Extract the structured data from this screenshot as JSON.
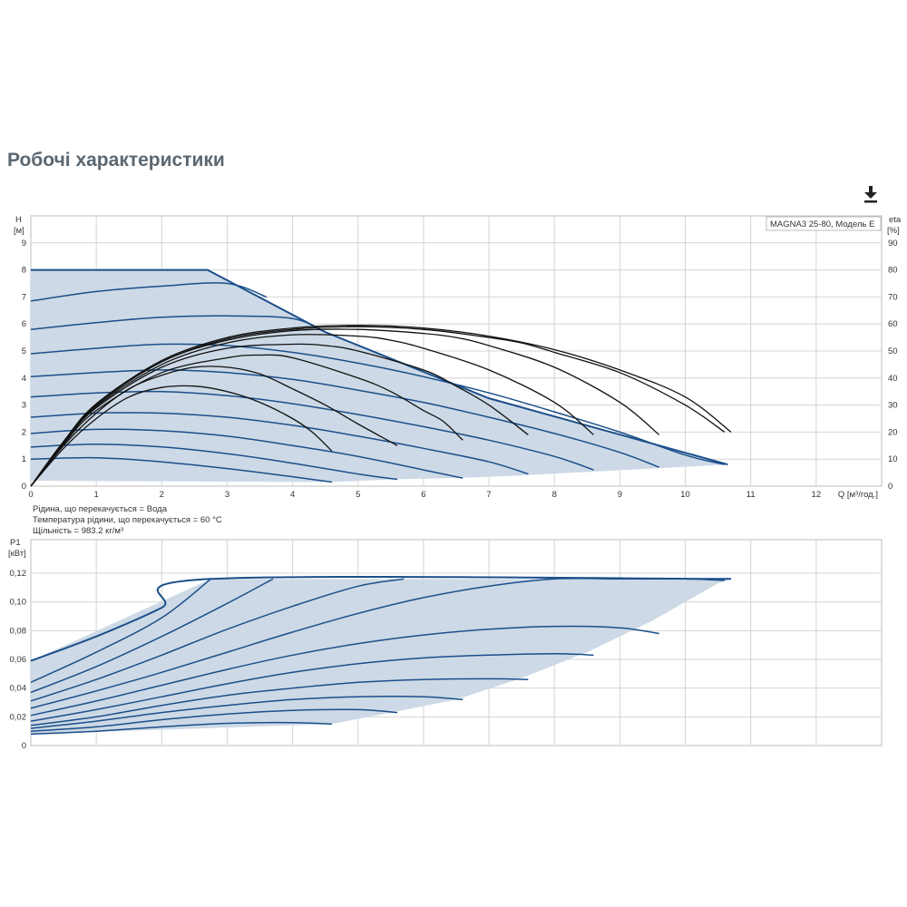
{
  "page": {
    "title": "Робочі характеристики"
  },
  "toolbar": {
    "download_icon": "download-icon"
  },
  "colors": {
    "region_fill": "#cdd9e6",
    "curve_blue": "#1b4f8a",
    "efficiency_black": "#111111",
    "grid": "#d4d4d4"
  },
  "info": {
    "liquid": "Рідина, що перекачується = Вода",
    "temperature": "Температура рідини, що перекачується = 60 °C",
    "density": "Щільність = 983.2 кг/м³"
  },
  "chart_data": [
    {
      "id": "head",
      "type": "line",
      "legend": "MAGNA3 25-80, Модель E",
      "xlabel": "Q [м³/год.]",
      "ylabel_line1": "H",
      "ylabel_line2": "[м]",
      "y2label_line1": "eta",
      "y2label_line2": "[%]",
      "xlim": [
        0,
        13
      ],
      "ylim": [
        0,
        10
      ],
      "y2lim": [
        0,
        100
      ],
      "xticks": [
        0,
        1,
        2,
        3,
        4,
        5,
        6,
        7,
        8,
        9,
        10,
        11,
        12
      ],
      "yticks": [
        0,
        1,
        2,
        3,
        4,
        5,
        6,
        7,
        8,
        9
      ],
      "y2ticks": [
        0,
        10,
        20,
        30,
        40,
        50,
        60,
        70,
        80,
        90
      ],
      "grid": true,
      "envelope": {
        "x": [
          0,
          2.7,
          4.5,
          7.0,
          10.65,
          10.65,
          7.5,
          6.5,
          5.5,
          4.6,
          0
        ],
        "y": [
          8.0,
          8.0,
          5.7,
          3.25,
          0.8,
          0.8,
          0.4,
          0.3,
          0.25,
          0.15,
          0.2
        ]
      },
      "series": [
        {
          "x": [
            0,
            1,
            2,
            3,
            4,
            4.6
          ],
          "y": [
            1.0,
            1.05,
            0.9,
            0.65,
            0.35,
            0.15
          ]
        },
        {
          "x": [
            0,
            1,
            2,
            3,
            4,
            5,
            5.6
          ],
          "y": [
            1.45,
            1.55,
            1.45,
            1.2,
            0.85,
            0.45,
            0.25
          ]
        },
        {
          "x": [
            0,
            1,
            2,
            3,
            4,
            5,
            6,
            6.6
          ],
          "y": [
            1.95,
            2.1,
            2.05,
            1.85,
            1.5,
            1.1,
            0.6,
            0.3
          ]
        },
        {
          "x": [
            0,
            1,
            2,
            3,
            4,
            5,
            6,
            7,
            7.6
          ],
          "y": [
            2.55,
            2.7,
            2.7,
            2.55,
            2.25,
            1.85,
            1.4,
            0.9,
            0.45
          ]
        },
        {
          "x": [
            0,
            1,
            2,
            3,
            4,
            5,
            6,
            7,
            8,
            8.6
          ],
          "y": [
            3.3,
            3.45,
            3.5,
            3.35,
            3.05,
            2.65,
            2.2,
            1.7,
            1.1,
            0.6
          ]
        },
        {
          "x": [
            0,
            1,
            2,
            3,
            4,
            5,
            6,
            7,
            8,
            9,
            9.6
          ],
          "y": [
            4.05,
            4.2,
            4.3,
            4.2,
            3.95,
            3.55,
            3.1,
            2.55,
            1.95,
            1.25,
            0.7
          ]
        },
        {
          "x": [
            0,
            1,
            2,
            3,
            4,
            5,
            6,
            7,
            8,
            9,
            10,
            10.6
          ],
          "y": [
            4.9,
            5.1,
            5.25,
            5.2,
            4.95,
            4.55,
            4.05,
            3.45,
            2.75,
            2.0,
            1.15,
            0.8
          ]
        },
        {
          "x": [
            0,
            1,
            2,
            3,
            4,
            4.45
          ],
          "y": [
            5.8,
            6.05,
            6.25,
            6.3,
            6.2,
            5.75
          ]
        },
        {
          "x": [
            0,
            1,
            2,
            3,
            3.6
          ],
          "y": [
            6.85,
            7.2,
            7.4,
            7.5,
            7.0
          ]
        }
      ],
      "efficiency": [
        {
          "x": [
            0,
            0.5,
            1,
            1.5,
            2,
            2.5,
            3,
            3.5,
            4,
            4.3,
            4.6
          ],
          "y": [
            0,
            14,
            25,
            33,
            36.5,
            37,
            35,
            31,
            25,
            20,
            13
          ]
        },
        {
          "x": [
            0,
            0.5,
            1,
            1.5,
            2,
            2.5,
            3,
            3.5,
            4,
            4.5,
            5,
            5.3,
            5.6
          ],
          "y": [
            0,
            15,
            27,
            36,
            41,
            44,
            44,
            41.5,
            36,
            30,
            23,
            19,
            15
          ]
        },
        {
          "x": [
            0,
            0.5,
            1,
            2,
            3,
            3.5,
            4,
            5,
            5.5,
            6,
            6.3,
            6.6
          ],
          "y": [
            0,
            15.5,
            28,
            42,
            47.5,
            48.5,
            47.5,
            40,
            35,
            28,
            24,
            17
          ]
        },
        {
          "x": [
            0,
            0.5,
            1,
            2,
            3,
            4,
            4.5,
            5,
            6,
            6.5,
            7,
            7.6
          ],
          "y": [
            0,
            16,
            29,
            44,
            51,
            52.5,
            52,
            50,
            43,
            37,
            30,
            19
          ]
        },
        {
          "x": [
            0,
            0.5,
            1,
            2,
            3,
            4,
            5,
            5.5,
            6,
            7,
            8,
            8.6
          ],
          "y": [
            0,
            16,
            29.5,
            45,
            53,
            56,
            55.5,
            54,
            51,
            43,
            31,
            19
          ]
        },
        {
          "x": [
            0,
            0.5,
            1,
            2,
            3,
            4,
            5,
            6,
            6.5,
            7,
            8,
            9,
            9.6
          ],
          "y": [
            0,
            16,
            30,
            46,
            54,
            57.5,
            58,
            56.5,
            55,
            52,
            44,
            31,
            19
          ]
        },
        {
          "x": [
            0,
            0.5,
            1,
            2,
            3,
            4,
            5,
            6,
            7,
            7.5,
            8,
            9,
            10,
            10.6
          ],
          "y": [
            0,
            16.5,
            30,
            46,
            54.5,
            58,
            59,
            58,
            55,
            53,
            49.5,
            42,
            30,
            20
          ]
        },
        {
          "x": [
            0,
            0.5,
            1,
            2,
            3,
            4,
            5,
            6,
            7,
            8,
            9,
            10,
            10.7
          ],
          "y": [
            0,
            16.5,
            30.5,
            46.5,
            55,
            58.5,
            59.5,
            58.5,
            55.5,
            50.5,
            43,
            33,
            20
          ]
        }
      ]
    },
    {
      "id": "power",
      "type": "line",
      "ylabel_line1": "P1",
      "ylabel_line2": "[кВт]",
      "xlim": [
        0,
        13
      ],
      "ylim": [
        0,
        0.12
      ],
      "yticks": [
        0,
        0.02,
        0.04,
        0.06,
        0.08,
        0.1,
        0.12
      ],
      "ytick_labels": [
        "0",
        "0,02",
        "0,04",
        "0,06",
        "0,08",
        "0,10",
        "0,12"
      ],
      "grid": true,
      "envelope": {
        "x": [
          0,
          2.75,
          10.7,
          10.5,
          9.5,
          8.5,
          7.5,
          6.5,
          5.5,
          4.6,
          0
        ],
        "y": [
          0.059,
          0.116,
          0.116,
          0.113,
          0.087,
          0.065,
          0.047,
          0.032,
          0.023,
          0.015,
          0.008
        ]
      },
      "series": [
        {
          "x": [
            0,
            1,
            2,
            3,
            4,
            4.6
          ],
          "y": [
            0.008,
            0.01,
            0.013,
            0.0155,
            0.016,
            0.015
          ]
        },
        {
          "x": [
            0,
            1,
            2,
            3,
            4,
            5,
            5.6
          ],
          "y": [
            0.01,
            0.013,
            0.018,
            0.022,
            0.0245,
            0.025,
            0.023
          ]
        },
        {
          "x": [
            0,
            1,
            2,
            3,
            4,
            5,
            6,
            6.6
          ],
          "y": [
            0.012,
            0.017,
            0.023,
            0.028,
            0.032,
            0.034,
            0.034,
            0.032
          ]
        },
        {
          "x": [
            0,
            1,
            2,
            3,
            4,
            5,
            6,
            7,
            7.6
          ],
          "y": [
            0.014,
            0.02,
            0.028,
            0.035,
            0.04,
            0.044,
            0.046,
            0.0465,
            0.046
          ]
        },
        {
          "x": [
            0,
            1,
            2,
            3,
            4,
            5,
            6,
            7,
            8,
            8.6
          ],
          "y": [
            0.017,
            0.025,
            0.034,
            0.043,
            0.051,
            0.057,
            0.061,
            0.063,
            0.064,
            0.063
          ]
        },
        {
          "x": [
            0,
            1,
            2,
            3,
            4,
            5,
            6,
            7,
            8,
            9,
            9.6
          ],
          "y": [
            0.021,
            0.031,
            0.042,
            0.053,
            0.063,
            0.071,
            0.077,
            0.081,
            0.083,
            0.082,
            0.078
          ]
        },
        {
          "x": [
            0,
            1,
            2,
            3,
            4,
            5,
            6,
            7,
            8,
            9,
            10,
            10.6
          ],
          "y": [
            0.026,
            0.038,
            0.051,
            0.065,
            0.079,
            0.092,
            0.103,
            0.111,
            0.116,
            0.116,
            0.116,
            0.115
          ]
        },
        {
          "x": [
            0,
            1,
            2,
            3,
            4,
            5,
            5.7
          ],
          "y": [
            0.031,
            0.046,
            0.063,
            0.081,
            0.097,
            0.111,
            0.116
          ]
        },
        {
          "x": [
            0,
            1,
            2,
            3,
            3.7
          ],
          "y": [
            0.037,
            0.055,
            0.076,
            0.099,
            0.116
          ]
        },
        {
          "x": [
            0,
            1,
            2,
            2.75
          ],
          "y": [
            0.044,
            0.065,
            0.089,
            0.116
          ]
        },
        {
          "x": [
            0,
            1,
            2,
            2.75,
            10.7
          ],
          "y": [
            0.059,
            0.076,
            0.096,
            0.116,
            0.116
          ]
        }
      ]
    }
  ]
}
